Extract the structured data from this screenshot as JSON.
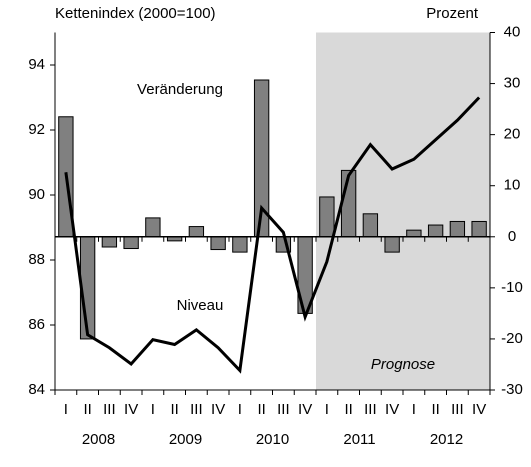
{
  "chart_data": {
    "type": "bar-line",
    "y_label": "Kettenindex (2000=100)",
    "y2_label": "Prozent",
    "categories": [
      "I",
      "II",
      "III",
      "IV",
      "I",
      "II",
      "III",
      "IV",
      "I",
      "II",
      "III",
      "IV",
      "I",
      "II",
      "III",
      "IV",
      "I",
      "II",
      "III",
      "IV"
    ],
    "years": [
      "2008",
      "2009",
      "2010",
      "2011",
      "2012"
    ],
    "series": [
      {
        "name": "Veränderung",
        "type": "bar",
        "axis": "y2",
        "color": "#808080",
        "values": [
          23.5,
          -20,
          -2,
          -2.3,
          3.7,
          -0.8,
          2,
          -2.5,
          -3,
          30.7,
          -3,
          -15,
          7.8,
          13,
          4.5,
          -3,
          1.3,
          2.3,
          3,
          3
        ]
      },
      {
        "name": "Niveau",
        "type": "line",
        "axis": "y",
        "color": "#000000",
        "values": [
          90.7,
          85.7,
          85.3,
          84.8,
          85.55,
          85.4,
          85.85,
          85.3,
          84.6,
          89.6,
          88.85,
          86.25,
          87.95,
          90.6,
          91.55,
          90.8,
          91.1,
          91.7,
          92.3,
          93.0
        ]
      }
    ],
    "ylim": [
      84,
      95
    ],
    "yticks": [
      84,
      86,
      88,
      90,
      92,
      94
    ],
    "y2lim": [
      -30,
      40
    ],
    "y2ticks": [
      -30,
      -20,
      -10,
      0,
      10,
      20,
      30,
      40
    ],
    "forecast": {
      "label": "Prognose",
      "start_index": 12,
      "color": "#d9d9d9"
    }
  }
}
